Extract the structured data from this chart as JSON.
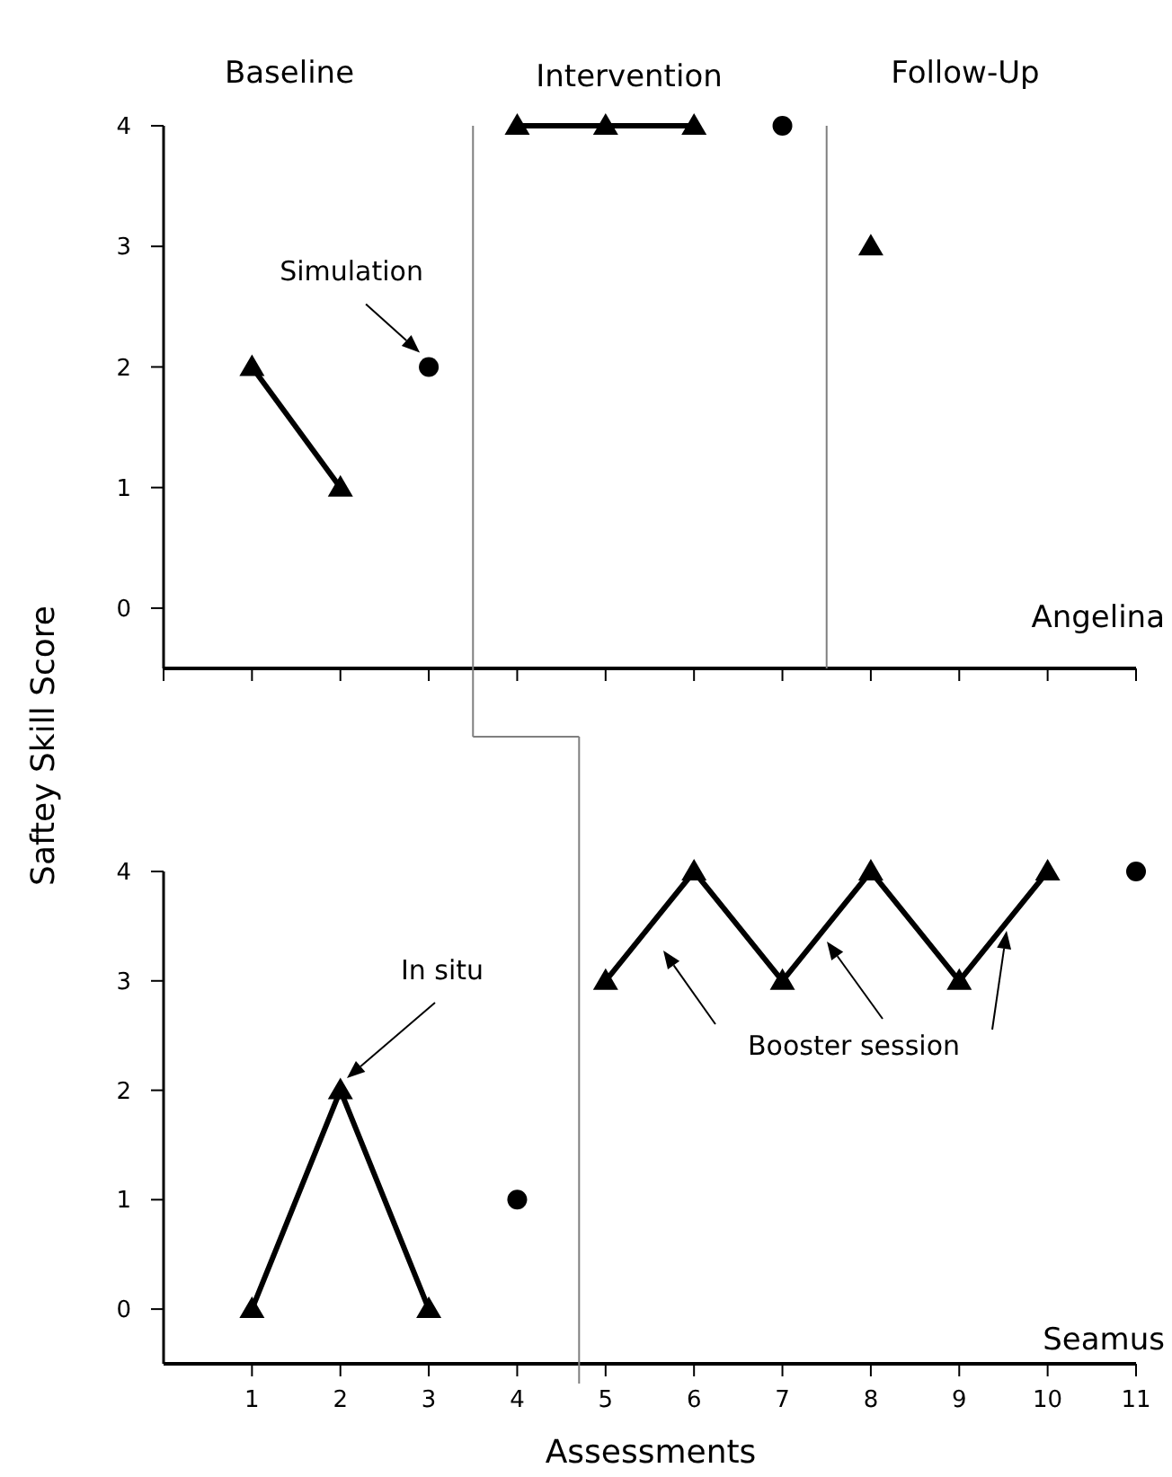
{
  "chart_data": [
    {
      "type": "line",
      "ylabel": "Saftey Skill Score",
      "xlim": [
        0,
        11
      ],
      "xticks": [
        0,
        1,
        2,
        3,
        4,
        5,
        6,
        7,
        8,
        9,
        10,
        11
      ],
      "ylim": [
        -0.5,
        4
      ],
      "yticks": [
        0,
        1,
        2,
        3,
        4
      ],
      "tick_labels": "y",
      "grid": false,
      "line_style": "solid",
      "series": [
        {
          "marker": "triangle",
          "color": "#000000",
          "x": [
            1,
            2
          ],
          "values": [
            2,
            1
          ]
        },
        {
          "type": "scatter",
          "marker": "circle",
          "color": "#000000",
          "x": [
            3
          ],
          "values": [
            2
          ]
        },
        {
          "marker": "triangle",
          "color": "#000000",
          "x": [
            4,
            5,
            6
          ],
          "values": [
            4,
            4,
            4
          ]
        },
        {
          "type": "scatter",
          "marker": "circle",
          "color": "#000000",
          "x": [
            7
          ],
          "values": [
            4
          ]
        },
        {
          "type": "scatter",
          "marker": "triangle",
          "color": "#000000",
          "x": [
            8
          ],
          "values": [
            3
          ]
        }
      ],
      "ref_lines": [
        {
          "axis": "x",
          "value": 3.5,
          "color": "#7f7f7f"
        },
        {
          "axis": "x",
          "value": 7.5,
          "color": "#7f7f7f"
        }
      ],
      "annotations": [
        "Baseline",
        "Intervention",
        "Follow-Up",
        "Angelina",
        {
          "text": "Simulation",
          "x": 3,
          "y": 2
        }
      ]
    },
    {
      "type": "line",
      "xlabel": "Assessments",
      "xlim": [
        0,
        11
      ],
      "xticks": [
        1,
        2,
        3,
        4,
        5,
        6,
        7,
        8,
        9,
        10,
        11
      ],
      "ylim": [
        -0.5,
        4
      ],
      "yticks": [
        0,
        1,
        2,
        3,
        4
      ],
      "grid": false,
      "line_style": "solid",
      "series": [
        {
          "marker": "triangle",
          "color": "#000000",
          "x": [
            1,
            2,
            3
          ],
          "values": [
            0,
            2,
            0
          ]
        },
        {
          "type": "scatter",
          "marker": "circle",
          "color": "#000000",
          "x": [
            4
          ],
          "values": [
            1
          ]
        },
        {
          "marker": "triangle",
          "color": "#000000",
          "x": [
            5,
            6,
            7,
            8,
            9,
            10
          ],
          "values": [
            3,
            4,
            3,
            4,
            3,
            4
          ]
        },
        {
          "type": "scatter",
          "marker": "circle",
          "color": "#000000",
          "x": [
            11
          ],
          "values": [
            4
          ]
        }
      ],
      "ref_lines": [
        {
          "axis": "x",
          "value": 4.7,
          "color": "#7f7f7f"
        }
      ],
      "annotations": [
        "Seamus",
        "Booster session",
        "In situ"
      ]
    }
  ]
}
